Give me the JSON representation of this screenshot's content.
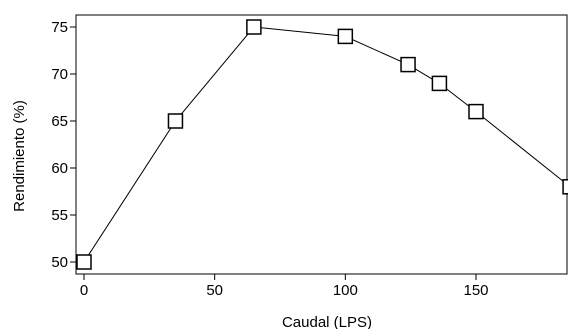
{
  "chart_data": {
    "type": "line",
    "title": "",
    "xlabel": "Caudal (LPS)",
    "ylabel": "Rendimiento (%)",
    "xlim": [
      0,
      187
    ],
    "ylim": [
      50,
      76
    ],
    "x_ticks": [
      0,
      50,
      100,
      150
    ],
    "x_tick_labels": [
      "0",
      "50",
      "100",
      "150"
    ],
    "y_ticks": [
      50,
      55,
      60,
      65,
      70,
      75
    ],
    "y_tick_labels": [
      "50",
      "55",
      "60",
      "65",
      "70",
      "75"
    ],
    "grid": false,
    "series": [
      {
        "x": [
          0,
          35,
          65,
          100,
          124,
          136,
          150,
          186
        ],
        "y": [
          50,
          65,
          75,
          74,
          71,
          69,
          66,
          58
        ],
        "marker": "square-open",
        "color": "#000000"
      }
    ]
  }
}
